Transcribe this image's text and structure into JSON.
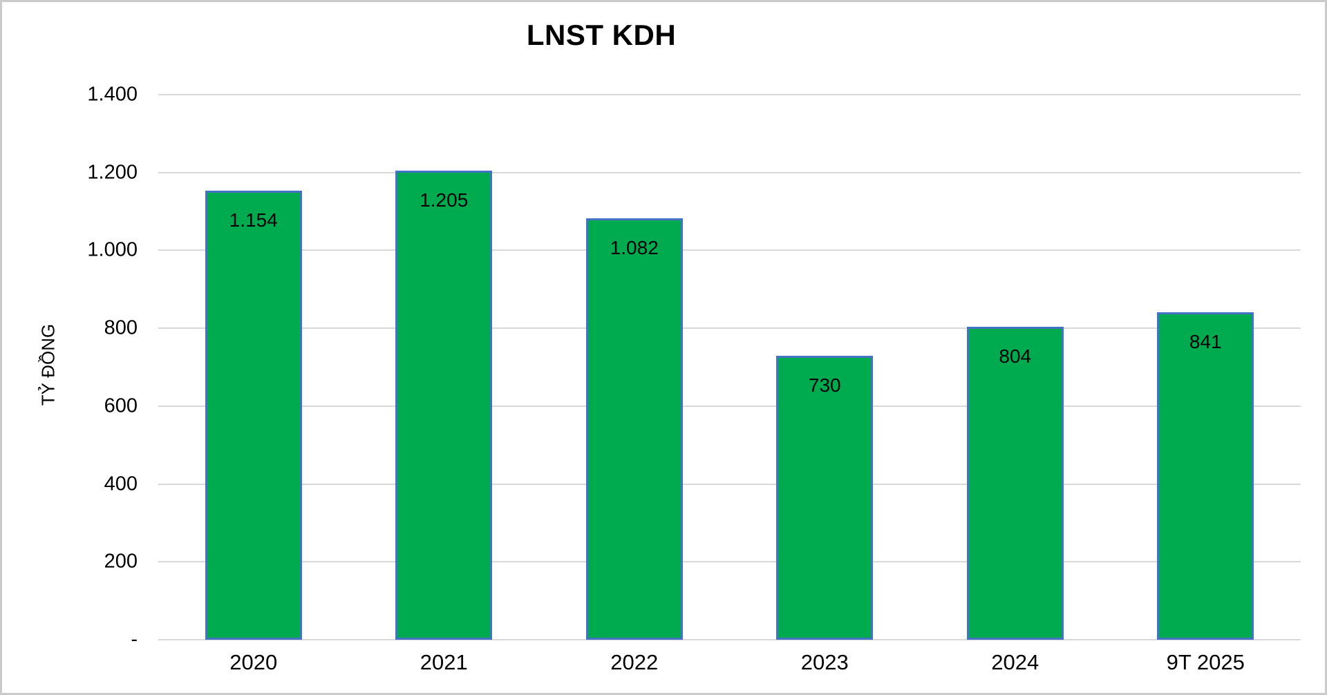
{
  "window": {
    "background": "#ffffff",
    "frame_border_color": "#cbcbcb"
  },
  "chart_data": {
    "type": "bar",
    "title": "LNST KDH",
    "xlabel": "",
    "ylabel": "TỶ ĐỒNG",
    "categories": [
      "2020",
      "2021",
      "2022",
      "2023",
      "2024",
      "9T 2025"
    ],
    "values": [
      1154,
      1205,
      1082,
      730,
      804,
      841
    ],
    "value_labels": [
      "1.154",
      "1.205",
      "1.082",
      "730",
      "804",
      "841"
    ],
    "ylim": [
      0,
      1400
    ],
    "y_ticks": [
      {
        "value": 0,
        "label": "-"
      },
      {
        "value": 200,
        "label": "200"
      },
      {
        "value": 400,
        "label": "400"
      },
      {
        "value": 600,
        "label": "600"
      },
      {
        "value": 800,
        "label": "800"
      },
      {
        "value": 1000,
        "label": "1.000"
      },
      {
        "value": 1200,
        "label": "1.200"
      },
      {
        "value": 1400,
        "label": "1.400"
      }
    ],
    "grid": "horizontal",
    "legend": "none",
    "label_position": "inside-end",
    "colors": {
      "bar_fill": "#00ab50",
      "bar_border": "#4472c4",
      "gridline": "#d9d9d9",
      "text": "#000000"
    }
  }
}
